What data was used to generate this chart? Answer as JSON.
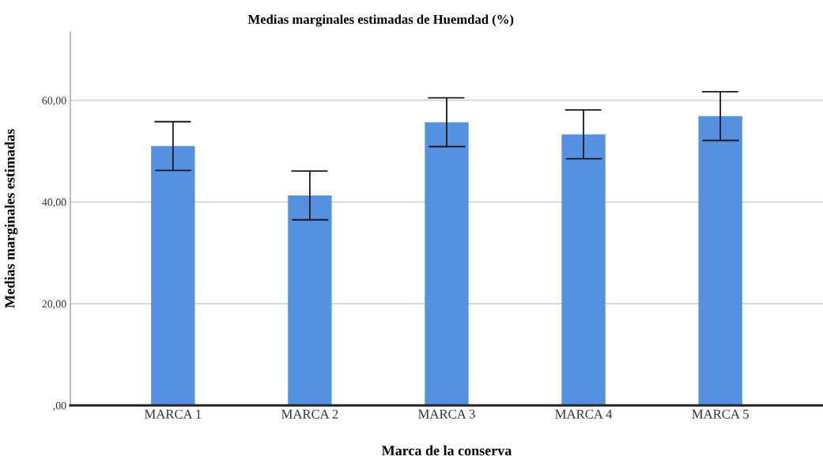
{
  "chart_data": {
    "type": "bar",
    "title": "Medias marginales estimadas de Huemdad (%)",
    "xlabel": "Marca de la conserva",
    "ylabel": "Medias marginales estimadas",
    "categories": [
      "MARCA 1",
      "MARCA 2",
      "MARCA 3",
      "MARCA 4",
      "MARCA 5"
    ],
    "values": [
      51.0,
      41.3,
      55.7,
      53.3,
      56.9
    ],
    "errors": [
      4.8,
      4.8,
      4.8,
      4.8,
      4.8
    ],
    "color": "#5591e0",
    "ylim": [
      0,
      73.5
    ],
    "yticks": [
      {
        "value": 0,
        "label": ",00"
      },
      {
        "value": 20,
        "label": "20,00"
      },
      {
        "value": 40,
        "label": "40,00"
      },
      {
        "value": 60,
        "label": "60,00"
      }
    ],
    "grid": "y"
  }
}
